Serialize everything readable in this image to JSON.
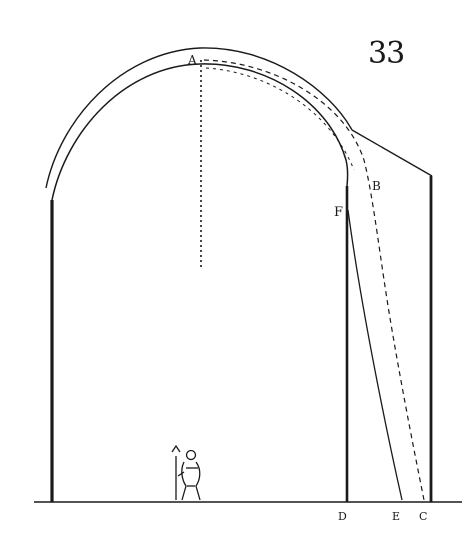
{
  "plate": {
    "number": "33"
  },
  "labels": {
    "a": "A",
    "b": "B",
    "f": "F",
    "d": "D",
    "e": "E",
    "c": "C"
  },
  "colors": {
    "ink": "#1a1a1a",
    "paper": "#ffffff"
  }
}
